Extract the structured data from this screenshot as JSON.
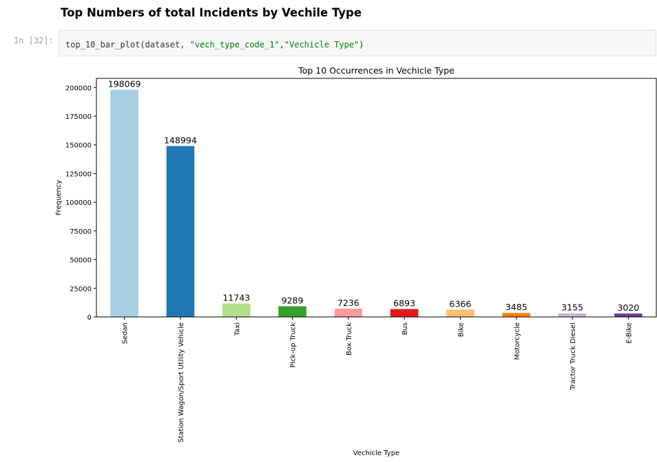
{
  "notebook": {
    "heading": "Top Numbers of total Incidents by Vechile Type",
    "cell_prompt": "In [32]:",
    "code": {
      "func": "top_10_bar_plot",
      "arg_plain": "(dataset, ",
      "arg_str1": "\"vech_type_code_1\"",
      "sep": ",",
      "arg_str2": "\"Vechicle Type\"",
      "close": ")"
    }
  },
  "colors": {
    "bars": [
      "#a6cee3",
      "#1f78b4",
      "#b2df8a",
      "#33a02c",
      "#fb9a99",
      "#e31a1c",
      "#fdbf6f",
      "#ff7f00",
      "#cab2d6",
      "#6a3d9a"
    ]
  },
  "chart_data": {
    "type": "bar",
    "title": "Top 10 Occurrences in Vechicle Type",
    "xlabel": "Vechicle Type",
    "ylabel": "Frequency",
    "categories": [
      "Sedan",
      "Station Wagon/Sport Utility Vehicle",
      "Taxi",
      "Pick-up Truck",
      "Box Truck",
      "Bus",
      "Bike",
      "Motorcycle",
      "Tractor Truck Diesel",
      "E-Bike"
    ],
    "values": [
      198069,
      148994,
      11743,
      9289,
      7236,
      6893,
      6366,
      3485,
      3155,
      3020
    ],
    "value_labels": [
      "198069",
      "148994",
      "11743",
      "9289",
      "7236",
      "6893",
      "6366",
      "3485",
      "3155",
      "3020"
    ],
    "yticks": [
      0,
      25000,
      50000,
      75000,
      100000,
      125000,
      150000,
      175000,
      200000
    ],
    "ytick_labels": [
      "0",
      "25000",
      "50000",
      "75000",
      "100000",
      "125000",
      "150000",
      "175000",
      "200000"
    ],
    "ylim": [
      0,
      207972
    ],
    "grid": false,
    "x_tick_rotation": 90
  }
}
